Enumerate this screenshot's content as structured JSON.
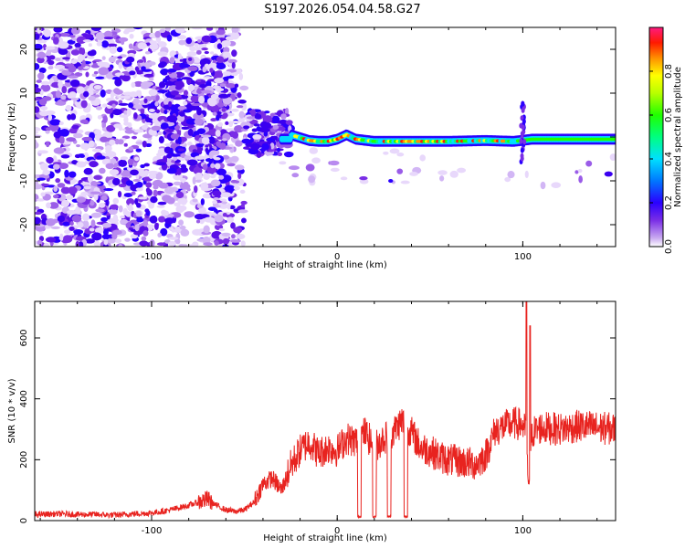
{
  "title": "S197.2026.054.04.58.G27",
  "chart_data": [
    {
      "type": "heatmap",
      "name": "spectrogram",
      "xlabel": "Height of straight line (km)",
      "ylabel": "Frequency (Hz)",
      "xlim": [
        -163,
        150
      ],
      "ylim": [
        -25,
        25
      ],
      "xticks": [
        -100,
        0,
        100
      ],
      "yticks": [
        -20,
        -10,
        0,
        10,
        20
      ],
      "xtick_labels": [
        "-100",
        "0",
        "100"
      ],
      "ytick_labels": [
        "-20",
        "-10",
        "0",
        "10",
        "20"
      ],
      "colorbar": {
        "label": "Normalized spectral amplitude",
        "range": [
          0,
          1
        ],
        "ticks": [
          0.0,
          0.2,
          0.4,
          0.6,
          0.8
        ],
        "tick_labels": [
          "0.0",
          "0.2",
          "0.4",
          "0.6",
          "0.8"
        ]
      },
      "line_trace": [
        {
          "x": -25,
          "freq": 0.5
        },
        {
          "x": -15,
          "freq": -0.8
        },
        {
          "x": -10,
          "freq": -1
        },
        {
          "x": -5,
          "freq": -1
        },
        {
          "x": 0,
          "freq": -0.5
        },
        {
          "x": 5,
          "freq": 0.5
        },
        {
          "x": 10,
          "freq": -0.5
        },
        {
          "x": 20,
          "freq": -1
        },
        {
          "x": 40,
          "freq": -1
        },
        {
          "x": 60,
          "freq": -1
        },
        {
          "x": 80,
          "freq": -0.8
        },
        {
          "x": 95,
          "freq": -1
        },
        {
          "x": 105,
          "freq": -0.5
        },
        {
          "x": 150,
          "freq": -0.5
        }
      ]
    },
    {
      "type": "line",
      "name": "snr",
      "xlabel": "Height of straight line (km)",
      "ylabel": "SNR (10 * v/v)",
      "xlim": [
        -163,
        150
      ],
      "ylim": [
        0,
        720
      ],
      "xticks": [
        -100,
        0,
        100
      ],
      "yticks": [
        0,
        200,
        400,
        600
      ],
      "xtick_labels": [
        "-100",
        "0",
        "100"
      ],
      "ytick_labels": [
        "0",
        "200",
        "400",
        "600"
      ],
      "series": [
        {
          "name": "SNR",
          "color": "#e8231f",
          "x": [
            -163,
            -150,
            -140,
            -130,
            -120,
            -110,
            -100,
            -90,
            -80,
            -75,
            -70,
            -65,
            -60,
            -55,
            -50,
            -45,
            -40,
            -35,
            -30,
            -25,
            -20,
            -15,
            -10,
            -5,
            0,
            5,
            10,
            15,
            20,
            25,
            30,
            35,
            40,
            45,
            50,
            55,
            60,
            65,
            70,
            75,
            80,
            85,
            90,
            95,
            100,
            102,
            103,
            105,
            110,
            120,
            130,
            140,
            150
          ],
          "y": [
            20,
            22,
            20,
            20,
            18,
            22,
            25,
            35,
            50,
            60,
            70,
            50,
            35,
            30,
            35,
            60,
            120,
            140,
            100,
            180,
            230,
            260,
            220,
            240,
            230,
            270,
            260,
            290,
            240,
            270,
            290,
            330,
            290,
            240,
            230,
            210,
            200,
            195,
            190,
            185,
            215,
            295,
            310,
            320,
            315,
            280,
            90,
            290,
            305,
            300,
            310,
            305,
            300
          ]
        }
      ],
      "dips": [
        {
          "x_start": 11,
          "x_end": 13,
          "y": 10
        },
        {
          "x_start": 19,
          "x_end": 21,
          "y": 10
        },
        {
          "x_start": 27,
          "x_end": 29,
          "y": 10
        },
        {
          "x_start": 36,
          "x_end": 38,
          "y": 10
        }
      ],
      "spikes": [
        {
          "x": 102,
          "y": 720
        },
        {
          "x": 104,
          "y": 640
        }
      ]
    }
  ]
}
